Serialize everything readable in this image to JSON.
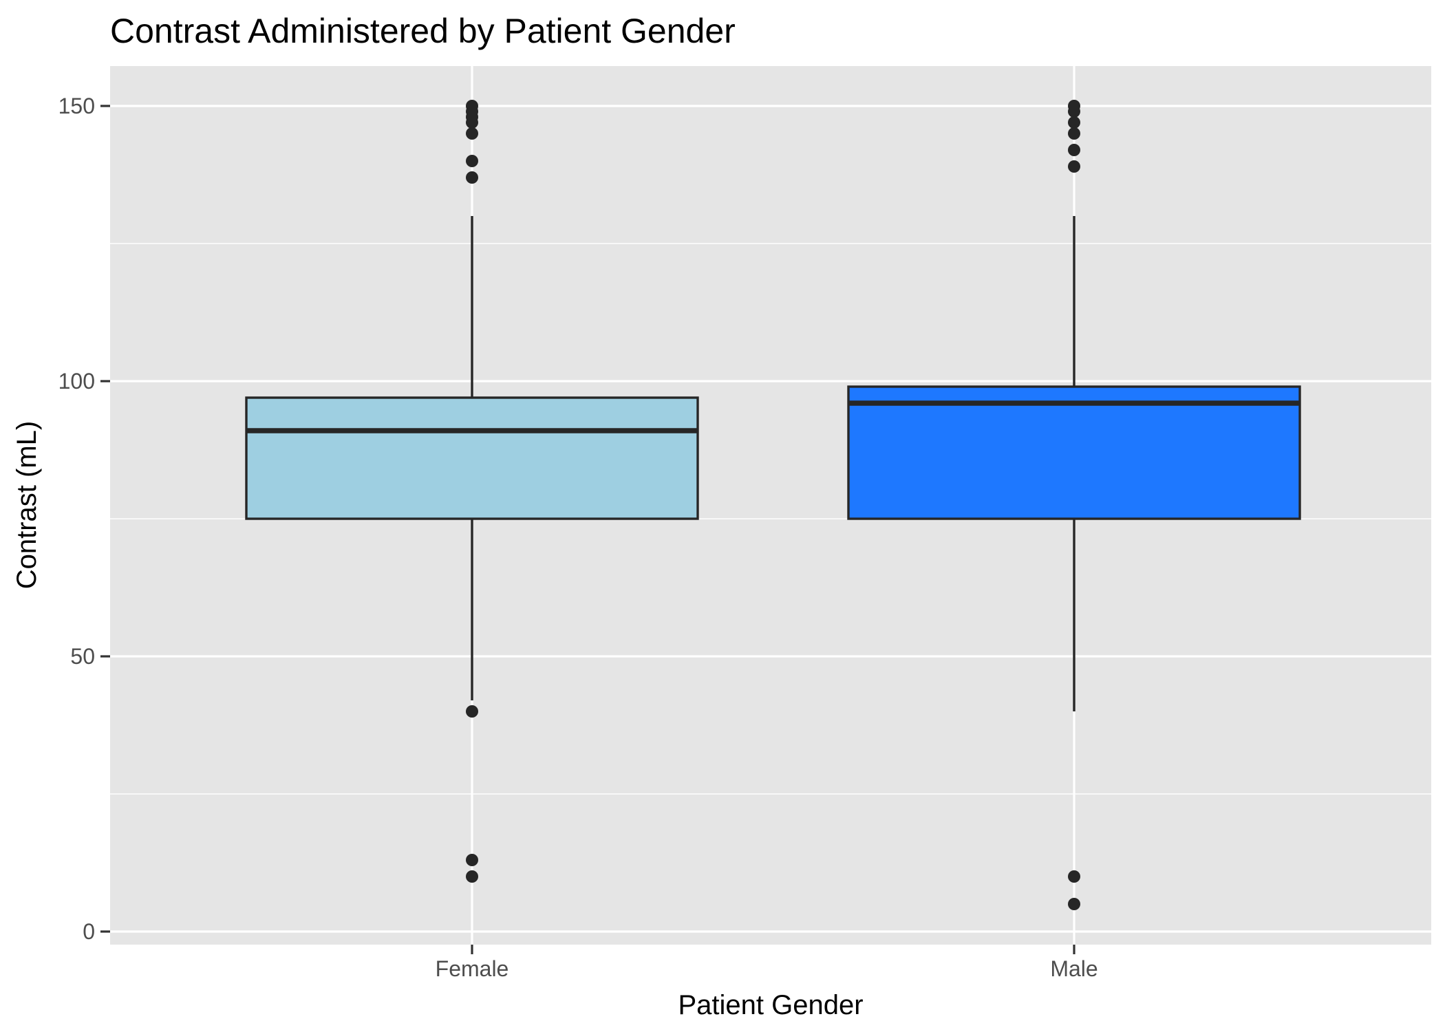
{
  "chart_data": {
    "type": "boxplot",
    "title": "Contrast Administered by Patient Gender",
    "xlabel": "Patient Gender",
    "ylabel": "Contrast (mL)",
    "ylim": [
      -2,
      157
    ],
    "yticks": [
      0,
      50,
      100,
      150
    ],
    "minor_yticks": [
      25,
      75,
      125
    ],
    "grid": true,
    "legend": "none",
    "categories": [
      "Female",
      "Male"
    ],
    "boxes": [
      {
        "category": "Female",
        "fill": "#9ecfe1",
        "q1": 75,
        "median": 91,
        "q3": 97,
        "whisker_low": 42,
        "whisker_high": 130,
        "outliers": [
          150,
          149,
          148,
          147,
          145,
          140,
          137,
          40,
          13,
          10
        ]
      },
      {
        "category": "Male",
        "fill": "#1e78ff",
        "q1": 75,
        "median": 96,
        "q3": 99,
        "whisker_low": 40,
        "whisker_high": 130,
        "outliers": [
          150,
          149,
          147,
          145,
          142,
          139,
          10,
          5
        ]
      }
    ]
  },
  "colors": {
    "panel_background": "#e5e5e5",
    "grid": "#ffffff",
    "box_outline": "#262626",
    "outlier": "#262626"
  }
}
